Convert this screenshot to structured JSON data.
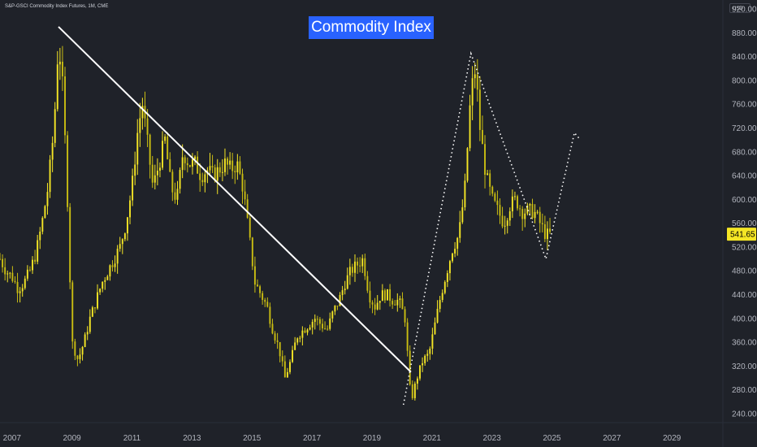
{
  "header": {
    "symbol_label": "S&P-GSCI Commodity Index Futures, 1M, CME",
    "currency": "USD",
    "title": "Commodity Index"
  },
  "colors": {
    "background": "#1f2229",
    "candle": "#f5e625",
    "candle_dark": "#c9bd12",
    "trendline": "#ffffff",
    "axis_text": "#b2b5be",
    "title_bg": "#2962ff"
  },
  "chart_data": {
    "type": "candlestick",
    "title": "Commodity Index",
    "xlabel": "",
    "ylabel": "",
    "interval": "1M",
    "xlim": [
      2006.6,
      2030.7
    ],
    "ylim": [
      225,
      935
    ],
    "x_ticks": [
      "2007",
      "2009",
      "2011",
      "2013",
      "2015",
      "2017",
      "2019",
      "2021",
      "2023",
      "2025",
      "2027",
      "2029"
    ],
    "y_ticks": [
      240,
      280,
      320,
      360,
      400,
      440,
      480,
      520,
      560,
      600,
      640,
      680,
      720,
      760,
      800,
      840,
      880,
      920
    ],
    "y_tick_labels": [
      "240.00",
      "280.00",
      "320.00",
      "360.00",
      "400.00",
      "440.00",
      "480.00",
      "520.00",
      "560.00",
      "600.00",
      "640.00",
      "680.00",
      "720.00",
      "760.00",
      "800.00",
      "840.00",
      "880.00",
      "920.00"
    ],
    "last_price": 541.65,
    "last_price_label": "541.65",
    "series": [
      {
        "kind": "monthly-close",
        "points": [
          [
            2006.6,
            500
          ],
          [
            2006.8,
            480
          ],
          [
            2007.0,
            470
          ],
          [
            2007.2,
            450
          ],
          [
            2007.4,
            460
          ],
          [
            2007.6,
            480
          ],
          [
            2007.8,
            510
          ],
          [
            2008.0,
            560
          ],
          [
            2008.2,
            620
          ],
          [
            2008.4,
            720
          ],
          [
            2008.55,
            870
          ],
          [
            2008.7,
            780
          ],
          [
            2008.85,
            600
          ],
          [
            2009.0,
            360
          ],
          [
            2009.2,
            330
          ],
          [
            2009.4,
            360
          ],
          [
            2009.6,
            400
          ],
          [
            2009.8,
            430
          ],
          [
            2010.0,
            460
          ],
          [
            2010.2,
            480
          ],
          [
            2010.4,
            500
          ],
          [
            2010.6,
            520
          ],
          [
            2010.8,
            560
          ],
          [
            2011.0,
            620
          ],
          [
            2011.2,
            720
          ],
          [
            2011.35,
            760
          ],
          [
            2011.5,
            700
          ],
          [
            2011.7,
            620
          ],
          [
            2011.9,
            660
          ],
          [
            2012.1,
            700
          ],
          [
            2012.3,
            620
          ],
          [
            2012.5,
            600
          ],
          [
            2012.7,
            680
          ],
          [
            2012.9,
            660
          ],
          [
            2013.1,
            660
          ],
          [
            2013.3,
            640
          ],
          [
            2013.5,
            650
          ],
          [
            2013.7,
            640
          ],
          [
            2013.9,
            650
          ],
          [
            2014.1,
            660
          ],
          [
            2014.3,
            650
          ],
          [
            2014.5,
            660
          ],
          [
            2014.7,
            620
          ],
          [
            2014.9,
            540
          ],
          [
            2015.1,
            460
          ],
          [
            2015.3,
            440
          ],
          [
            2015.5,
            420
          ],
          [
            2015.7,
            380
          ],
          [
            2015.9,
            350
          ],
          [
            2016.1,
            300
          ],
          [
            2016.3,
            330
          ],
          [
            2016.5,
            370
          ],
          [
            2016.7,
            380
          ],
          [
            2016.9,
            390
          ],
          [
            2017.1,
            400
          ],
          [
            2017.3,
            390
          ],
          [
            2017.5,
            380
          ],
          [
            2017.7,
            410
          ],
          [
            2017.9,
            430
          ],
          [
            2018.1,
            460
          ],
          [
            2018.3,
            480
          ],
          [
            2018.5,
            490
          ],
          [
            2018.7,
            500
          ],
          [
            2018.9,
            440
          ],
          [
            2019.1,
            420
          ],
          [
            2019.3,
            440
          ],
          [
            2019.5,
            440
          ],
          [
            2019.7,
            430
          ],
          [
            2019.9,
            430
          ],
          [
            2020.1,
            400
          ],
          [
            2020.3,
            260
          ],
          [
            2020.5,
            300
          ],
          [
            2020.7,
            330
          ],
          [
            2020.9,
            340
          ],
          [
            2021.1,
            390
          ],
          [
            2021.3,
            440
          ],
          [
            2021.5,
            480
          ],
          [
            2021.7,
            520
          ],
          [
            2021.9,
            540
          ],
          [
            2022.1,
            620
          ],
          [
            2022.3,
            780
          ],
          [
            2022.45,
            820
          ],
          [
            2022.6,
            720
          ],
          [
            2022.8,
            640
          ],
          [
            2023.0,
            600
          ],
          [
            2023.2,
            580
          ],
          [
            2023.4,
            560
          ],
          [
            2023.6,
            590
          ],
          [
            2023.8,
            600
          ],
          [
            2024.0,
            580
          ],
          [
            2024.2,
            580
          ],
          [
            2024.4,
            580
          ],
          [
            2024.6,
            560
          ],
          [
            2024.8,
            540
          ],
          [
            2025.0,
            541.65
          ]
        ]
      },
      {
        "kind": "trendline-solid",
        "points": [
          [
            2008.55,
            890
          ],
          [
            2020.3,
            310
          ]
        ]
      },
      {
        "kind": "projection-dotted",
        "points": [
          [
            2020.05,
            255
          ],
          [
            2022.3,
            845
          ],
          [
            2024.8,
            500
          ],
          [
            2025.75,
            712
          ],
          [
            2025.95,
            700
          ]
        ]
      }
    ]
  }
}
